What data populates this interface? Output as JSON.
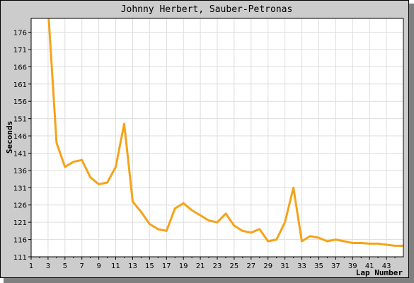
{
  "chart_data": {
    "type": "line",
    "title": "Johnny Herbert, Sauber-Petronas",
    "xlabel": "Lap Number",
    "ylabel": "Seconds",
    "xlim": [
      1,
      45
    ],
    "ylim": [
      111,
      180
    ],
    "x_ticks": [
      1,
      3,
      5,
      7,
      9,
      11,
      13,
      15,
      17,
      19,
      21,
      23,
      25,
      27,
      29,
      31,
      33,
      35,
      37,
      39,
      41,
      43
    ],
    "y_ticks": [
      111,
      116,
      121,
      126,
      131,
      136,
      141,
      146,
      151,
      156,
      161,
      166,
      171,
      176
    ],
    "grid": true,
    "line_color": "#f5a31a",
    "series": [
      {
        "name": "",
        "x": [
          3,
          4,
          5,
          6,
          7,
          8,
          9,
          10,
          11,
          12,
          13,
          14,
          15,
          16,
          17,
          18,
          19,
          20,
          21,
          22,
          23,
          24,
          25,
          26,
          27,
          28,
          29,
          30,
          31,
          32,
          33,
          34,
          35,
          36,
          37,
          38,
          39,
          40,
          41,
          42,
          43,
          44,
          45
        ],
        "values": [
          183,
          144,
          137,
          138.5,
          139,
          134,
          132,
          132.5,
          137,
          149.5,
          127,
          124,
          120.5,
          119,
          118.5,
          125,
          126.5,
          124.5,
          123,
          121.5,
          121,
          123.5,
          120,
          118.5,
          118,
          119,
          115.5,
          116,
          121,
          131,
          115.5,
          117,
          116.5,
          115.5,
          116,
          115.5,
          115,
          115,
          114.8,
          114.8,
          114.5,
          114.2,
          114.2
        ]
      }
    ]
  }
}
